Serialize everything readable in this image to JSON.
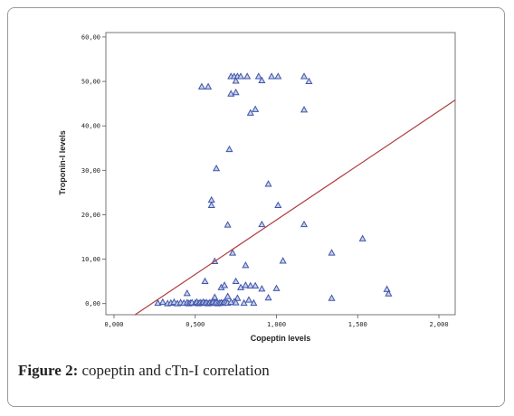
{
  "figure": {
    "label": "Figure 2:",
    "text": " copeptin and cTn-I correlation"
  },
  "colors": {
    "marker": "#3f55a8",
    "marker_fill": "#c9d1ee",
    "fit_line": "#b03a3a",
    "frame": "#9a9a9a"
  },
  "chart_data": {
    "type": "scatter",
    "title": "",
    "xlabel": "Copeptin levels",
    "ylabel": "Troponin-I levels",
    "xlim": [
      -0.05,
      2.1
    ],
    "ylim": [
      -2.5,
      61
    ],
    "x_ticks": [
      0,
      0.5,
      1,
      1.5,
      2
    ],
    "x_tick_labels": [
      "0,000",
      "0,500",
      "1,000",
      "1,500",
      "2,000"
    ],
    "y_ticks": [
      0,
      10,
      20,
      30,
      40,
      50,
      60
    ],
    "y_tick_labels": [
      "0,00",
      "10,00",
      "20,00",
      "30,00",
      "40,00",
      "50,00",
      "60,00"
    ],
    "marker": "triangle",
    "fit_line": {
      "x": [
        0.13,
        2.1
      ],
      "y": [
        -2.5,
        45.8
      ]
    },
    "points": [
      [
        0.54,
        48.8
      ],
      [
        0.58,
        48.8
      ],
      [
        0.72,
        51.1
      ],
      [
        0.74,
        51.1
      ],
      [
        0.76,
        51.1
      ],
      [
        0.78,
        51.1
      ],
      [
        0.82,
        51.1
      ],
      [
        0.89,
        51.1
      ],
      [
        0.97,
        51.1
      ],
      [
        1.01,
        51.1
      ],
      [
        1.17,
        51.1
      ],
      [
        1.2,
        50.0
      ],
      [
        0.72,
        47.2
      ],
      [
        0.75,
        47.5
      ],
      [
        0.75,
        50.1
      ],
      [
        0.91,
        50.2
      ],
      [
        0.84,
        42.9
      ],
      [
        0.87,
        43.7
      ],
      [
        1.17,
        43.6
      ],
      [
        0.71,
        34.7
      ],
      [
        0.63,
        30.4
      ],
      [
        0.95,
        26.9
      ],
      [
        0.6,
        23.3
      ],
      [
        0.6,
        22.1
      ],
      [
        1.01,
        22.1
      ],
      [
        0.7,
        17.7
      ],
      [
        0.91,
        17.8
      ],
      [
        1.17,
        17.8
      ],
      [
        1.53,
        14.6
      ],
      [
        0.73,
        11.4
      ],
      [
        1.34,
        11.4
      ],
      [
        0.62,
        9.5
      ],
      [
        0.81,
        8.6
      ],
      [
        1.04,
        9.6
      ],
      [
        0.56,
        5.0
      ],
      [
        0.75,
        5.0
      ],
      [
        0.66,
        3.6
      ],
      [
        0.68,
        4.1
      ],
      [
        0.78,
        3.6
      ],
      [
        0.81,
        4.1
      ],
      [
        0.84,
        4.0
      ],
      [
        0.87,
        4.0
      ],
      [
        0.91,
        3.3
      ],
      [
        1.0,
        3.4
      ],
      [
        1.68,
        3.2
      ],
      [
        1.69,
        2.2
      ],
      [
        0.45,
        2.3
      ],
      [
        0.62,
        1.4
      ],
      [
        0.7,
        1.6
      ],
      [
        0.76,
        1.2
      ],
      [
        0.83,
        0.8
      ],
      [
        0.95,
        1.3
      ],
      [
        1.34,
        1.2
      ],
      [
        0.74,
        0.4
      ],
      [
        0.27,
        0.1
      ],
      [
        0.3,
        0.3
      ],
      [
        0.33,
        0.0
      ],
      [
        0.35,
        0.1
      ],
      [
        0.37,
        0.3
      ],
      [
        0.39,
        0.0
      ],
      [
        0.41,
        0.2
      ],
      [
        0.43,
        0.1
      ],
      [
        0.45,
        0.2
      ],
      [
        0.46,
        0.0
      ],
      [
        0.47,
        0.1
      ],
      [
        0.48,
        0.2
      ],
      [
        0.5,
        0.1
      ],
      [
        0.51,
        0.3
      ],
      [
        0.52,
        0.0
      ],
      [
        0.53,
        0.2
      ],
      [
        0.54,
        0.1
      ],
      [
        0.55,
        0.3
      ],
      [
        0.56,
        0.1
      ],
      [
        0.57,
        0.2
      ],
      [
        0.58,
        0.0
      ],
      [
        0.59,
        0.2
      ],
      [
        0.6,
        0.1
      ],
      [
        0.61,
        0.3
      ],
      [
        0.62,
        0.1
      ],
      [
        0.63,
        0.2
      ],
      [
        0.64,
        0.0
      ],
      [
        0.65,
        0.1
      ],
      [
        0.66,
        0.2
      ],
      [
        0.67,
        0.1
      ],
      [
        0.68,
        0.3
      ],
      [
        0.69,
        0.2
      ],
      [
        0.7,
        0.1
      ],
      [
        0.72,
        0.3
      ],
      [
        0.75,
        0.2
      ],
      [
        0.8,
        0.1
      ],
      [
        0.86,
        0.1
      ]
    ]
  }
}
